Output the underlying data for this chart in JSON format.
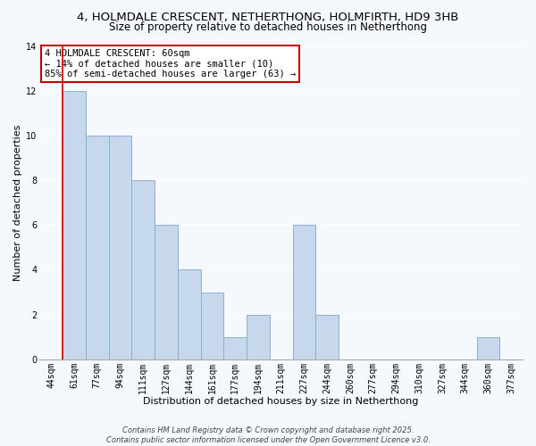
{
  "title": "4, HOLMDALE CRESCENT, NETHERTHONG, HOLMFIRTH, HD9 3HB",
  "subtitle": "Size of property relative to detached houses in Netherthong",
  "xlabel": "Distribution of detached houses by size in Netherthong",
  "ylabel": "Number of detached properties",
  "bins": [
    "44sqm",
    "61sqm",
    "77sqm",
    "94sqm",
    "111sqm",
    "127sqm",
    "144sqm",
    "161sqm",
    "177sqm",
    "194sqm",
    "211sqm",
    "227sqm",
    "244sqm",
    "260sqm",
    "277sqm",
    "294sqm",
    "310sqm",
    "327sqm",
    "344sqm",
    "360sqm",
    "377sqm"
  ],
  "values": [
    0,
    12,
    10,
    10,
    8,
    6,
    4,
    3,
    1,
    2,
    0,
    6,
    2,
    0,
    0,
    0,
    0,
    0,
    0,
    1,
    0
  ],
  "bar_color": "#c8d8ec",
  "bar_edge_color": "#8ab0d0",
  "red_line_index": 1,
  "ylim": [
    0,
    14
  ],
  "yticks": [
    0,
    2,
    4,
    6,
    8,
    10,
    12,
    14
  ],
  "annotation_title": "4 HOLMDALE CRESCENT: 60sqm",
  "annotation_line2": "← 14% of detached houses are smaller (10)",
  "annotation_line3": "85% of semi-detached houses are larger (63) →",
  "annotation_box_color": "#ffffff",
  "annotation_box_edge": "#cc0000",
  "background_color": "#f5f8fc",
  "grid_color": "#ffffff",
  "footer1": "Contains HM Land Registry data © Crown copyright and database right 2025.",
  "footer2": "Contains public sector information licensed under the Open Government Licence v3.0.",
  "title_fontsize": 9.5,
  "subtitle_fontsize": 8.5,
  "axis_label_fontsize": 8,
  "tick_fontsize": 7,
  "annotation_fontsize": 7.5,
  "footer_fontsize": 6
}
